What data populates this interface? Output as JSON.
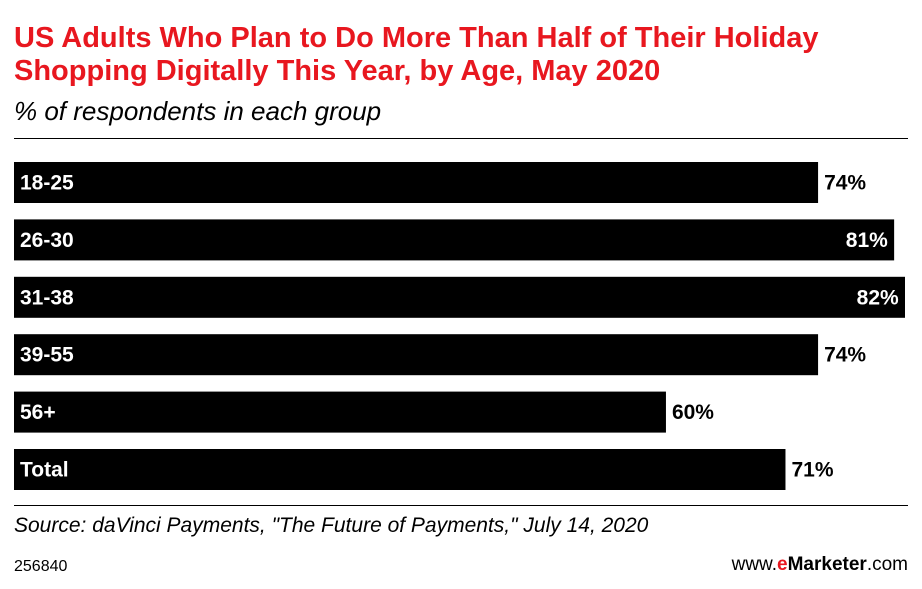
{
  "colors": {
    "title": "#e8171f",
    "bar": "#000000",
    "background": "#ffffff"
  },
  "chart_data": {
    "type": "bar",
    "orientation": "horizontal",
    "title": "US Adults Who Plan to Do More Than Half of Their Holiday Shopping Digitally This Year, by Age, May 2020",
    "subtitle": "% of respondents in each group",
    "categories": [
      "18-25",
      "26-30",
      "31-38",
      "39-55",
      "56+",
      "Total"
    ],
    "values": [
      74,
      81,
      82,
      74,
      60,
      71
    ],
    "value_labels": [
      "74%",
      "81%",
      "82%",
      "74%",
      "60%",
      "71%"
    ],
    "xlim": [
      0,
      82
    ],
    "grid": false,
    "legend": "none"
  },
  "footer": {
    "source": "Source: daVinci Payments, \"The Future of Payments,\" July 14, 2020",
    "chart_id": "256840",
    "brand_prefix": "www.",
    "brand_e": "e",
    "brand_name": "Marketer",
    "brand_suffix": ".com"
  }
}
